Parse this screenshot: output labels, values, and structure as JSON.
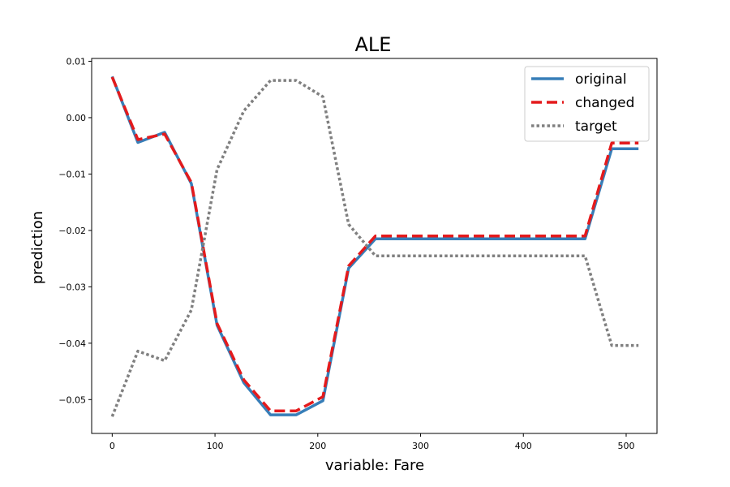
{
  "chart_data": {
    "type": "line",
    "title": "ALE",
    "xlabel": "variable: Fare",
    "ylabel": "prediction",
    "xlim": [
      -20,
      530
    ],
    "ylim": [
      -0.056,
      0.0105
    ],
    "xticks": [
      0,
      100,
      200,
      300,
      400,
      500
    ],
    "xtick_labels": [
      "0",
      "100",
      "200",
      "300",
      "400",
      "500"
    ],
    "yticks": [
      0.01,
      0.0,
      -0.01,
      -0.02,
      -0.03,
      -0.04,
      -0.05
    ],
    "ytick_labels": [
      "0.01",
      "0.00",
      "−0.01",
      "−0.02",
      "−0.03",
      "−0.04",
      "−0.05"
    ],
    "grid": false,
    "legend_position": "top-right",
    "series": [
      {
        "name": "original",
        "color": "#377eb8",
        "style": "solid",
        "x": [
          0,
          25,
          51,
          77,
          102,
          128,
          154,
          179,
          205,
          230,
          256,
          281,
          307,
          332,
          358,
          383,
          409,
          435,
          460,
          486,
          512
        ],
        "y": [
          0.0073,
          -0.0044,
          -0.0026,
          -0.0117,
          -0.0368,
          -0.047,
          -0.0527,
          -0.0527,
          -0.0502,
          -0.0267,
          -0.0215,
          -0.0215,
          -0.0215,
          -0.0215,
          -0.0215,
          -0.0215,
          -0.0215,
          -0.0215,
          -0.0215,
          -0.0055,
          -0.0055
        ]
      },
      {
        "name": "changed",
        "color": "#e41a1c",
        "style": "dashed",
        "x": [
          0,
          25,
          51,
          77,
          102,
          128,
          154,
          179,
          205,
          230,
          256,
          281,
          307,
          332,
          358,
          383,
          409,
          435,
          460,
          486,
          512
        ],
        "y": [
          0.0072,
          -0.0039,
          -0.0029,
          -0.0115,
          -0.0365,
          -0.0465,
          -0.052,
          -0.052,
          -0.0495,
          -0.0263,
          -0.021,
          -0.021,
          -0.021,
          -0.021,
          -0.021,
          -0.021,
          -0.021,
          -0.021,
          -0.021,
          -0.0045,
          -0.0045
        ]
      },
      {
        "name": "target",
        "color": "#808080",
        "style": "dotted",
        "x": [
          0,
          25,
          51,
          77,
          102,
          128,
          154,
          179,
          205,
          230,
          256,
          281,
          307,
          332,
          358,
          383,
          409,
          435,
          460,
          486,
          512
        ],
        "y": [
          -0.053,
          -0.0414,
          -0.0431,
          -0.0341,
          -0.0092,
          0.0012,
          0.0066,
          0.0066,
          0.0037,
          -0.0189,
          -0.0245,
          -0.0245,
          -0.0245,
          -0.0245,
          -0.0245,
          -0.0245,
          -0.0245,
          -0.0245,
          -0.0245,
          -0.0404,
          -0.0404
        ]
      }
    ]
  }
}
